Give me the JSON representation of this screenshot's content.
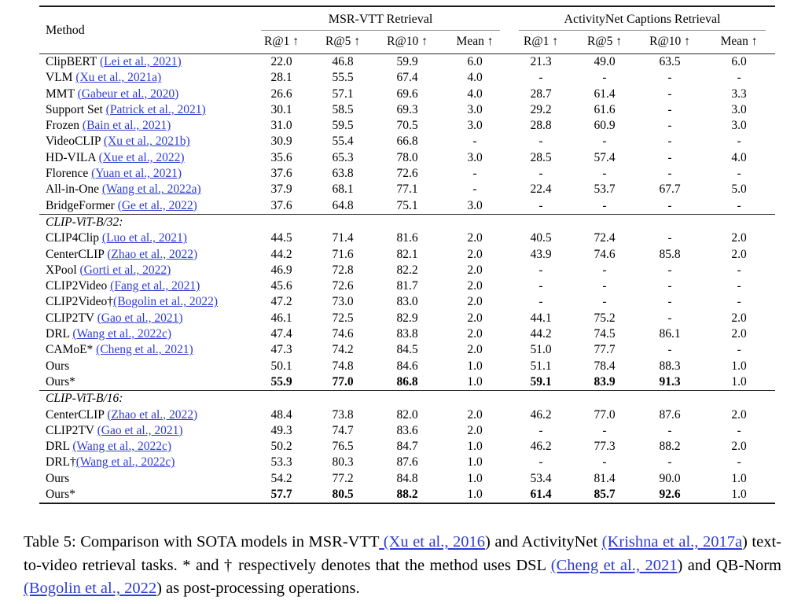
{
  "colors": {
    "link": "#2e3cd0",
    "rule_dark": "#1a1a1a",
    "rule_light": "#8a8a8a",
    "text": "#000000"
  },
  "table": {
    "header": {
      "method_label": "Method",
      "groups": [
        {
          "label": "MSR-VTT Retrieval"
        },
        {
          "label": "ActivityNet Captions Retrieval"
        }
      ],
      "metric_labels": [
        "R@1 ↑",
        "R@5 ↑",
        "R@10 ↑",
        "Mean ↑",
        "R@1 ↑",
        "R@5 ↑",
        "R@10 ↑",
        "Mean ↑"
      ]
    },
    "sections": [
      {
        "group_label": "",
        "rows": [
          {
            "method": "ClipBERT ",
            "cite": "(Lei et al., 2021)",
            "values": [
              "22.0",
              "46.8",
              "59.9",
              "6.0",
              "21.3",
              "49.0",
              "63.5",
              "6.0"
            ],
            "bold": []
          },
          {
            "method": "VLM ",
            "cite": "(Xu et al., 2021a)",
            "values": [
              "28.1",
              "55.5",
              "67.4",
              "4.0",
              "-",
              "-",
              "-",
              "-"
            ],
            "bold": []
          },
          {
            "method": "MMT ",
            "cite": "(Gabeur et al., 2020)",
            "values": [
              "26.6",
              "57.1",
              "69.6",
              "4.0",
              "28.7",
              "61.4",
              "-",
              "3.3"
            ],
            "bold": []
          },
          {
            "method": "Support Set ",
            "cite": "(Patrick et al., 2021)",
            "values": [
              "30.1",
              "58.5",
              "69.3",
              "3.0",
              "29.2",
              "61.6",
              "-",
              "3.0"
            ],
            "bold": []
          },
          {
            "method": "Frozen ",
            "cite": "(Bain et al., 2021)",
            "values": [
              "31.0",
              "59.5",
              "70.5",
              "3.0",
              "28.8",
              "60.9",
              "-",
              "3.0"
            ],
            "bold": []
          },
          {
            "method": "VideoCLIP ",
            "cite": "(Xu et al., 2021b)",
            "values": [
              "30.9",
              "55.4",
              "66.8",
              "-",
              "-",
              "-",
              "-",
              "-"
            ],
            "bold": []
          },
          {
            "method": "HD-VILA ",
            "cite": "(Xue et al., 2022)",
            "values": [
              "35.6",
              "65.3",
              "78.0",
              "3.0",
              "28.5",
              "57.4",
              "-",
              "4.0"
            ],
            "bold": []
          },
          {
            "method": "Florence ",
            "cite": "(Yuan et al., 2021)",
            "values": [
              "37.6",
              "63.8",
              "72.6",
              "-",
              "-",
              "-",
              "-",
              "-"
            ],
            "bold": []
          },
          {
            "method": "All-in-One ",
            "cite": "(Wang et al., 2022a)",
            "values": [
              "37.9",
              "68.1",
              "77.1",
              "-",
              "22.4",
              "53.7",
              "67.7",
              "5.0"
            ],
            "bold": []
          },
          {
            "method": "BridgeFormer ",
            "cite": "(Ge et al., 2022)",
            "values": [
              "37.6",
              "64.8",
              "75.1",
              "3.0",
              "-",
              "-",
              "-",
              "-"
            ],
            "bold": []
          }
        ]
      },
      {
        "group_label": "CLIP-ViT-B/32:",
        "rows": [
          {
            "method": "CLIP4Clip ",
            "cite": "(Luo et al., 2021)",
            "values": [
              "44.5",
              "71.4",
              "81.6",
              "2.0",
              "40.5",
              "72.4",
              "-",
              "2.0"
            ],
            "bold": []
          },
          {
            "method": "CenterCLIP ",
            "cite": "(Zhao et al., 2022)",
            "values": [
              "44.2",
              "71.6",
              "82.1",
              "2.0",
              "43.9",
              "74.6",
              "85.8",
              "2.0"
            ],
            "bold": []
          },
          {
            "method": "XPool ",
            "cite": "(Gorti et al., 2022)",
            "values": [
              "46.9",
              "72.8",
              "82.2",
              "2.0",
              "-",
              "-",
              "-",
              "-"
            ],
            "bold": []
          },
          {
            "method": "CLIP2Video ",
            "cite": "(Fang et al., 2021)",
            "values": [
              "45.6",
              "72.6",
              "81.7",
              "2.0",
              "-",
              "-",
              "-",
              "-"
            ],
            "bold": []
          },
          {
            "method": "CLIP2Video†",
            "cite": "(Bogolin et al., 2022)",
            "values": [
              "47.2",
              "73.0",
              "83.0",
              "2.0",
              "-",
              "-",
              "-",
              "-"
            ],
            "bold": []
          },
          {
            "method": "CLIP2TV ",
            "cite": "(Gao et al., 2021)",
            "values": [
              "46.1",
              "72.5",
              "82.9",
              "2.0",
              "44.1",
              "75.2",
              "-",
              "2.0"
            ],
            "bold": []
          },
          {
            "method": "DRL ",
            "cite": "(Wang et al., 2022c)",
            "values": [
              "47.4",
              "74.6",
              "83.8",
              "2.0",
              "44.2",
              "74.5",
              "86.1",
              "2.0"
            ],
            "bold": []
          },
          {
            "method": "CAMoE* ",
            "cite": "(Cheng et al., 2021)",
            "values": [
              "47.3",
              "74.2",
              "84.5",
              "2.0",
              "51.0",
              "77.7",
              "-",
              "-"
            ],
            "bold": []
          },
          {
            "method": "Ours",
            "cite": "",
            "values": [
              "50.1",
              "74.8",
              "84.6",
              "1.0",
              "51.1",
              "78.4",
              "88.3",
              "1.0"
            ],
            "bold": []
          },
          {
            "method": "Ours*",
            "cite": "",
            "values": [
              "55.9",
              "77.0",
              "86.8",
              "1.0",
              "59.1",
              "83.9",
              "91.3",
              "1.0"
            ],
            "bold": [
              0,
              1,
              2,
              4,
              5,
              6
            ]
          }
        ]
      },
      {
        "group_label": "CLIP-ViT-B/16:",
        "rows": [
          {
            "method": "CenterCLIP ",
            "cite": "(Zhao et al., 2022)",
            "values": [
              "48.4",
              "73.8",
              "82.0",
              "2.0",
              "46.2",
              "77.0",
              "87.6",
              "2.0"
            ],
            "bold": []
          },
          {
            "method": "CLIP2TV ",
            "cite": "(Gao et al., 2021)",
            "values": [
              "49.3",
              "74.7",
              "83.6",
              "2.0",
              "-",
              "-",
              "-",
              "-"
            ],
            "bold": []
          },
          {
            "method": "DRL ",
            "cite": "(Wang et al., 2022c)",
            "values": [
              "50.2",
              "76.5",
              "84.7",
              "1.0",
              "46.2",
              "77.3",
              "88.2",
              "2.0"
            ],
            "bold": []
          },
          {
            "method": "DRL†",
            "cite": "(Wang et al., 2022c)",
            "values": [
              "53.3",
              "80.3",
              "87.6",
              "1.0",
              "-",
              "-",
              "-",
              "-"
            ],
            "bold": []
          },
          {
            "method": "Ours",
            "cite": "",
            "values": [
              "54.2",
              "77.2",
              "84.8",
              "1.0",
              "53.4",
              "81.4",
              "90.0",
              "1.0"
            ],
            "bold": []
          },
          {
            "method": "Ours*",
            "cite": "",
            "values": [
              "57.7",
              "80.5",
              "88.2",
              "1.0",
              "61.4",
              "85.7",
              "92.6",
              "1.0"
            ],
            "bold": [
              0,
              1,
              2,
              4,
              5,
              6
            ]
          }
        ]
      }
    ]
  },
  "caption": {
    "segments": [
      {
        "text": "Table 5: Comparison with SOTA models in MSR-VTT",
        "link": false
      },
      {
        "text": " (Xu et al., 2016",
        "link": true
      },
      {
        "text": ") and ActivityNet ",
        "link": false
      },
      {
        "text": "(Krishna et al., 2017a",
        "link": true
      },
      {
        "text": ") text-to-video retrieval tasks.  * and † respectively denotes that the method uses DSL ",
        "link": false
      },
      {
        "text": "(Cheng et al., 2021",
        "link": true
      },
      {
        "text": ") and QB-Norm",
        "link": false
      },
      {
        "text": " (Bogolin et al., 2022",
        "link": true
      },
      {
        "text": ") as post-processing operations.",
        "link": false
      }
    ]
  }
}
